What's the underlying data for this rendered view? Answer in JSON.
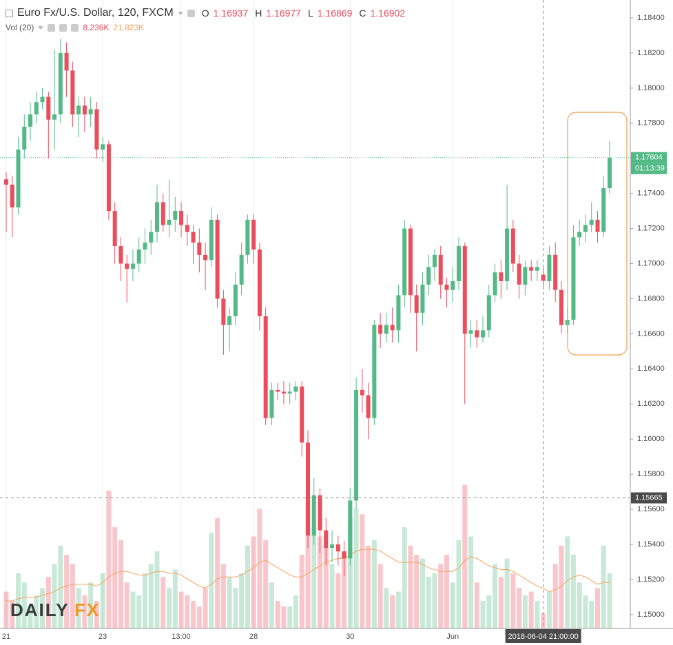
{
  "header": {
    "title": "Euro Fx/U.S. Dollar, 120, FXCM",
    "ohlc": [
      [
        "O",
        "1.16937"
      ],
      [
        "H",
        "1.16977"
      ],
      [
        "L",
        "1.16869"
      ],
      [
        "C",
        "1.16902"
      ]
    ],
    "volume_label": "Vol (20)",
    "volume_value": "8.236K",
    "volume_ma_value": "21.823K"
  },
  "logo": {
    "left": "DAILY",
    "right": "FX"
  },
  "chart_data": {
    "type": "candlestick",
    "categories": [
      "21",
      null,
      null,
      null,
      null,
      null,
      null,
      null,
      null,
      null,
      null,
      null,
      null,
      null,
      null,
      null,
      "23",
      null,
      null,
      null,
      null,
      null,
      null,
      null,
      null,
      null,
      null,
      null,
      null,
      "13:00",
      null,
      null,
      null,
      null,
      null,
      null,
      null,
      null,
      null,
      null,
      null,
      "28",
      null,
      null,
      null,
      null,
      null,
      null,
      null,
      null,
      null,
      null,
      null,
      null,
      null,
      null,
      null,
      "30",
      null,
      null,
      null,
      null,
      null,
      null,
      null,
      null,
      null,
      null,
      null,
      null,
      null,
      null,
      null,
      null,
      "Jun",
      null,
      null,
      null,
      null,
      null,
      null,
      null,
      null,
      null,
      null,
      null,
      null,
      null,
      null,
      "2018-06-04 21:00:00",
      null,
      null,
      null,
      null,
      null,
      null,
      null,
      null,
      null,
      null,
      null
    ],
    "open": [
      1.1748,
      1.1745,
      1.1732,
      1.1765,
      1.1778,
      1.1785,
      1.1792,
      1.1795,
      1.1782,
      1.1785,
      1.182,
      1.181,
      1.1785,
      1.179,
      1.1785,
      1.1788,
      1.1765,
      1.1768,
      1.173,
      1.171,
      1.17,
      1.1697,
      1.17,
      1.1708,
      1.1712,
      1.1718,
      1.1735,
      1.1722,
      1.1725,
      1.173,
      1.1722,
      1.1718,
      1.1712,
      1.1705,
      1.1702,
      1.1725,
      1.168,
      1.1665,
      1.167,
      1.1688,
      1.1705,
      1.1725,
      1.1708,
      1.167,
      1.1612,
      1.1628,
      1.1627,
      1.1626,
      1.1627,
      1.163,
      1.1598,
      1.1545,
      1.1568,
      1.1548,
      1.1538,
      1.154,
      1.1536,
      1.1532,
      1.1565,
      1.1628,
      1.1625,
      1.1612,
      1.1665,
      1.166,
      1.1665,
      1.1662,
      1.1682,
      1.172,
      1.1682,
      1.1672,
      1.1688,
      1.1698,
      1.1705,
      1.1688,
      1.1685,
      1.169,
      1.171,
      1.166,
      1.1662,
      1.1658,
      1.1662,
      1.1682,
      1.1695,
      1.169,
      1.172,
      1.17,
      1.1688,
      1.1698,
      1.1696,
      1.16937,
      1.169,
      1.1705,
      1.1685,
      1.1665,
      1.1668,
      1.1715,
      1.1718,
      1.1722,
      1.1725,
      1.1718,
      1.1743
    ],
    "high": [
      1.1752,
      1.175,
      1.1772,
      1.1785,
      1.1792,
      1.1798,
      1.18,
      1.1798,
      1.1822,
      1.1828,
      1.1826,
      1.1815,
      1.1795,
      1.1795,
      1.1795,
      1.1792,
      1.1772,
      1.177,
      1.1735,
      1.1715,
      1.1705,
      1.1708,
      1.1715,
      1.172,
      1.1725,
      1.1745,
      1.174,
      1.1748,
      1.1738,
      1.1735,
      1.1728,
      1.1722,
      1.172,
      1.1712,
      1.1732,
      1.1728,
      1.1685,
      1.1675,
      1.1695,
      1.1712,
      1.1728,
      1.1728,
      1.1712,
      1.1675,
      1.1632,
      1.1632,
      1.1633,
      1.1632,
      1.1633,
      1.1633,
      1.1605,
      1.1578,
      1.1572,
      1.1555,
      1.1548,
      1.1545,
      1.1542,
      1.1572,
      1.1635,
      1.164,
      1.1632,
      1.1668,
      1.1672,
      1.1672,
      1.1675,
      1.1688,
      1.1725,
      1.1722,
      1.1688,
      1.1695,
      1.1705,
      1.1708,
      1.171,
      1.1692,
      1.1698,
      1.1715,
      1.1712,
      1.1668,
      1.1668,
      1.167,
      1.1688,
      1.17,
      1.1702,
      1.1745,
      1.1725,
      1.1705,
      1.1702,
      1.1702,
      1.1702,
      1.16977,
      1.171,
      1.1712,
      1.169,
      1.1675,
      1.1722,
      1.1725,
      1.1728,
      1.1735,
      1.173,
      1.175,
      1.177
    ],
    "low": [
      1.1718,
      1.1715,
      1.1728,
      1.176,
      1.177,
      1.178,
      1.1788,
      1.176,
      1.1765,
      1.178,
      1.1795,
      1.1778,
      1.1772,
      1.1775,
      1.1778,
      1.176,
      1.1758,
      1.1725,
      1.17,
      1.169,
      1.1678,
      1.169,
      1.1695,
      1.17,
      1.1705,
      1.1712,
      1.1718,
      1.1715,
      1.1718,
      1.1715,
      1.171,
      1.17,
      1.1695,
      1.1685,
      1.1698,
      1.1675,
      1.1648,
      1.165,
      1.1665,
      1.1682,
      1.17,
      1.17,
      1.1662,
      1.1608,
      1.1608,
      1.1622,
      1.162,
      1.162,
      1.1622,
      1.159,
      1.1538,
      1.154,
      1.1535,
      1.1528,
      1.153,
      1.1528,
      1.1522,
      1.1528,
      1.156,
      1.1615,
      1.16,
      1.1608,
      1.1652,
      1.1655,
      1.1655,
      1.1655,
      1.1675,
      1.1672,
      1.165,
      1.1665,
      1.1682,
      1.169,
      1.168,
      1.1675,
      1.1678,
      1.1685,
      1.162,
      1.1652,
      1.1652,
      1.1655,
      1.1658,
      1.1678,
      1.168,
      1.1685,
      1.1695,
      1.168,
      1.1682,
      1.169,
      1.169,
      1.16869,
      1.1685,
      1.1678,
      1.166,
      1.166,
      1.1665,
      1.171,
      1.1712,
      1.1718,
      1.1712,
      1.1715,
      1.174
    ],
    "close": [
      1.1745,
      1.1732,
      1.1765,
      1.1778,
      1.1785,
      1.1792,
      1.1795,
      1.1782,
      1.1785,
      1.182,
      1.181,
      1.1785,
      1.179,
      1.1785,
      1.1788,
      1.1765,
      1.1768,
      1.173,
      1.171,
      1.17,
      1.1697,
      1.17,
      1.1708,
      1.1712,
      1.1718,
      1.1735,
      1.1722,
      1.1725,
      1.173,
      1.1722,
      1.1718,
      1.1712,
      1.1705,
      1.1702,
      1.1725,
      1.168,
      1.1665,
      1.167,
      1.1688,
      1.1705,
      1.1725,
      1.1708,
      1.167,
      1.1612,
      1.1628,
      1.1627,
      1.1626,
      1.1627,
      1.163,
      1.1598,
      1.1545,
      1.1568,
      1.1548,
      1.1538,
      1.154,
      1.1536,
      1.1532,
      1.1565,
      1.1628,
      1.1625,
      1.1612,
      1.1665,
      1.166,
      1.1665,
      1.1662,
      1.1682,
      1.172,
      1.1682,
      1.1672,
      1.1688,
      1.1698,
      1.1705,
      1.1688,
      1.1685,
      1.169,
      1.171,
      1.166,
      1.1662,
      1.1658,
      1.1662,
      1.1682,
      1.1695,
      1.169,
      1.172,
      1.17,
      1.1688,
      1.1698,
      1.1696,
      1.1698,
      1.16902,
      1.1705,
      1.1685,
      1.1665,
      1.1668,
      1.1715,
      1.1718,
      1.1722,
      1.1725,
      1.1718,
      1.1743,
      1.17604
    ],
    "volume": [
      20,
      15,
      30,
      25,
      12,
      18,
      22,
      28,
      35,
      45,
      40,
      35,
      22,
      18,
      25,
      15,
      30,
      75,
      55,
      48,
      25,
      20,
      18,
      30,
      35,
      42,
      28,
      22,
      32,
      20,
      18,
      15,
      12,
      22,
      52,
      60,
      35,
      28,
      22,
      30,
      45,
      50,
      65,
      48,
      25,
      15,
      12,
      12,
      18,
      40,
      70,
      55,
      50,
      45,
      35,
      30,
      42,
      60,
      65,
      62,
      45,
      48,
      35,
      22,
      18,
      20,
      55,
      45,
      40,
      38,
      28,
      30,
      35,
      40,
      25,
      48,
      78,
      50,
      25,
      15,
      18,
      35,
      28,
      38,
      30,
      22,
      18,
      20,
      15,
      8.236,
      20,
      35,
      45,
      50,
      40,
      25,
      18,
      15,
      22,
      45,
      30
    ],
    "volume_ma": [
      15,
      15,
      16,
      17,
      17,
      17,
      18,
      19,
      20,
      22,
      23,
      24,
      24,
      24,
      24,
      23,
      25,
      28,
      30,
      31,
      31,
      30,
      29,
      29,
      30,
      31,
      31,
      30,
      30,
      29,
      27,
      25,
      23,
      22,
      24,
      27,
      28,
      28,
      28,
      29,
      31,
      33,
      36,
      37,
      35,
      33,
      31,
      29,
      28,
      28,
      30,
      32,
      34,
      36,
      37,
      38,
      38,
      40,
      42,
      43,
      43,
      43,
      42,
      40,
      38,
      36,
      36,
      36,
      36,
      35,
      33,
      32,
      31,
      31,
      31,
      33,
      37,
      39,
      38,
      36,
      34,
      33,
      32,
      32,
      31,
      29,
      27,
      25,
      23,
      21.823,
      20,
      21,
      23,
      26,
      28,
      29,
      28,
      26,
      24,
      25,
      25
    ],
    "volume_lim": [
      0,
      85
    ],
    "up_color": "#53b987",
    "down_color": "#eb4d5c",
    "volume_up_color": "rgba(83,185,135,0.32)",
    "volume_down_color": "rgba(235,77,92,0.32)",
    "ma_color": "#f7a35c",
    "ylim": [
      1.14921,
      1.18502
    ],
    "yticks": [
      {
        "value": 1.184,
        "label": "1.18400"
      },
      {
        "value": 1.182,
        "label": "1.18200"
      },
      {
        "value": 1.18,
        "label": "1.18000"
      },
      {
        "value": 1.178,
        "label": "1.17800"
      },
      {
        "value": 1.176,
        "label": "1.17600"
      },
      {
        "value": 1.174,
        "label": "1.17400"
      },
      {
        "value": 1.172,
        "label": "1.17200"
      },
      {
        "value": 1.17,
        "label": "1.17000"
      },
      {
        "value": 1.168,
        "label": "1.16800"
      },
      {
        "value": 1.166,
        "label": "1.16600"
      },
      {
        "value": 1.164,
        "label": "1.16400"
      },
      {
        "value": 1.162,
        "label": "1.16200"
      },
      {
        "value": 1.16,
        "label": "1.16000"
      },
      {
        "value": 1.158,
        "label": "1.15800"
      },
      {
        "value": 1.156,
        "label": "1.15600"
      },
      {
        "value": 1.154,
        "label": "1.15400"
      },
      {
        "value": 1.152,
        "label": "1.15200"
      },
      {
        "value": 1.15,
        "label": "1.15000"
      }
    ],
    "last_price": {
      "value": 1.17604,
      "label": "1.17604"
    },
    "countdown": "01:13:39",
    "crosshair": {
      "index": 89,
      "price": {
        "value": 1.15665,
        "label": "1.15665"
      }
    },
    "grid": true
  }
}
